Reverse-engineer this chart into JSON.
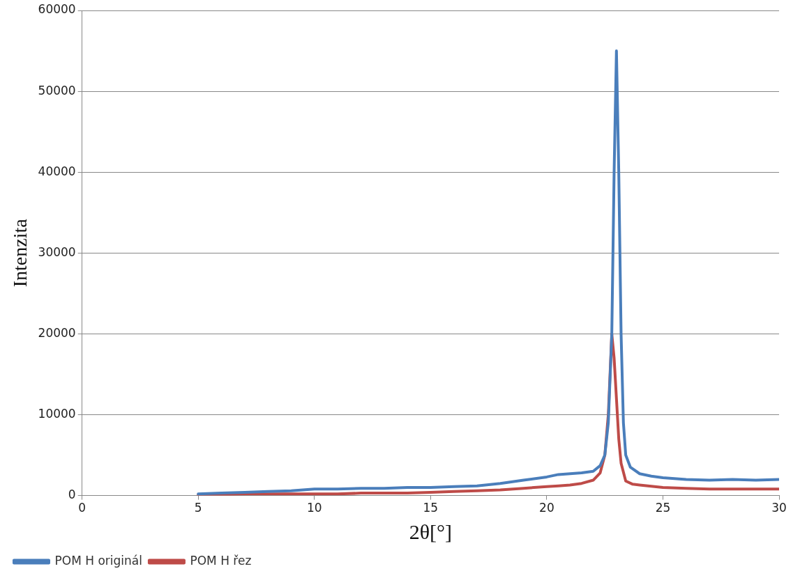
{
  "chart_data": {
    "type": "line",
    "xlabel": "2θ[°]",
    "ylabel": "Intenzita",
    "xlim": [
      0,
      30
    ],
    "xticks": [
      0,
      5,
      10,
      15,
      20,
      25,
      30
    ],
    "ylim": [
      0,
      60000
    ],
    "yticks": [
      0,
      10000,
      20000,
      30000,
      40000,
      50000,
      60000
    ],
    "grid": "y",
    "legend": "bottom",
    "marker": "none",
    "line_style": "solid",
    "series": [
      {
        "name": "POM H originál",
        "color": "#4a7ebb",
        "x": [
          5,
          6,
          7,
          8,
          9,
          10,
          11,
          12,
          13,
          14,
          15,
          16,
          17,
          18,
          19,
          20,
          20.5,
          21,
          21.5,
          22,
          22.3,
          22.5,
          22.65,
          22.8,
          22.9,
          23,
          23.1,
          23.2,
          23.3,
          23.4,
          23.6,
          24,
          24.5,
          25,
          26,
          27,
          28,
          29,
          30
        ],
        "values": [
          200,
          300,
          400,
          500,
          600,
          800,
          800,
          900,
          900,
          1000,
          1000,
          1100,
          1200,
          1500,
          1900,
          2300,
          2600,
          2700,
          2800,
          3000,
          3700,
          5000,
          9000,
          20000,
          40000,
          55000,
          40000,
          20000,
          9000,
          5000,
          3500,
          2700,
          2400,
          2200,
          2000,
          1900,
          2000,
          1900,
          2000
        ]
      },
      {
        "name": "POM H řez",
        "color": "#be4b48",
        "x": [
          5,
          6,
          7,
          8,
          9,
          10,
          11,
          12,
          13,
          14,
          15,
          16,
          17,
          18,
          19,
          20,
          20.5,
          21,
          21.5,
          22,
          22.3,
          22.5,
          22.65,
          22.8,
          22.9,
          23,
          23.1,
          23.2,
          23.4,
          23.7,
          24,
          25,
          26,
          27,
          28,
          29,
          30
        ],
        "values": [
          100,
          100,
          200,
          200,
          200,
          200,
          200,
          300,
          300,
          300,
          400,
          500,
          600,
          700,
          900,
          1100,
          1200,
          1300,
          1500,
          1900,
          2800,
          5000,
          10000,
          20000,
          17000,
          12000,
          7000,
          4000,
          1800,
          1400,
          1300,
          1000,
          900,
          800,
          800,
          800,
          800
        ]
      }
    ]
  }
}
